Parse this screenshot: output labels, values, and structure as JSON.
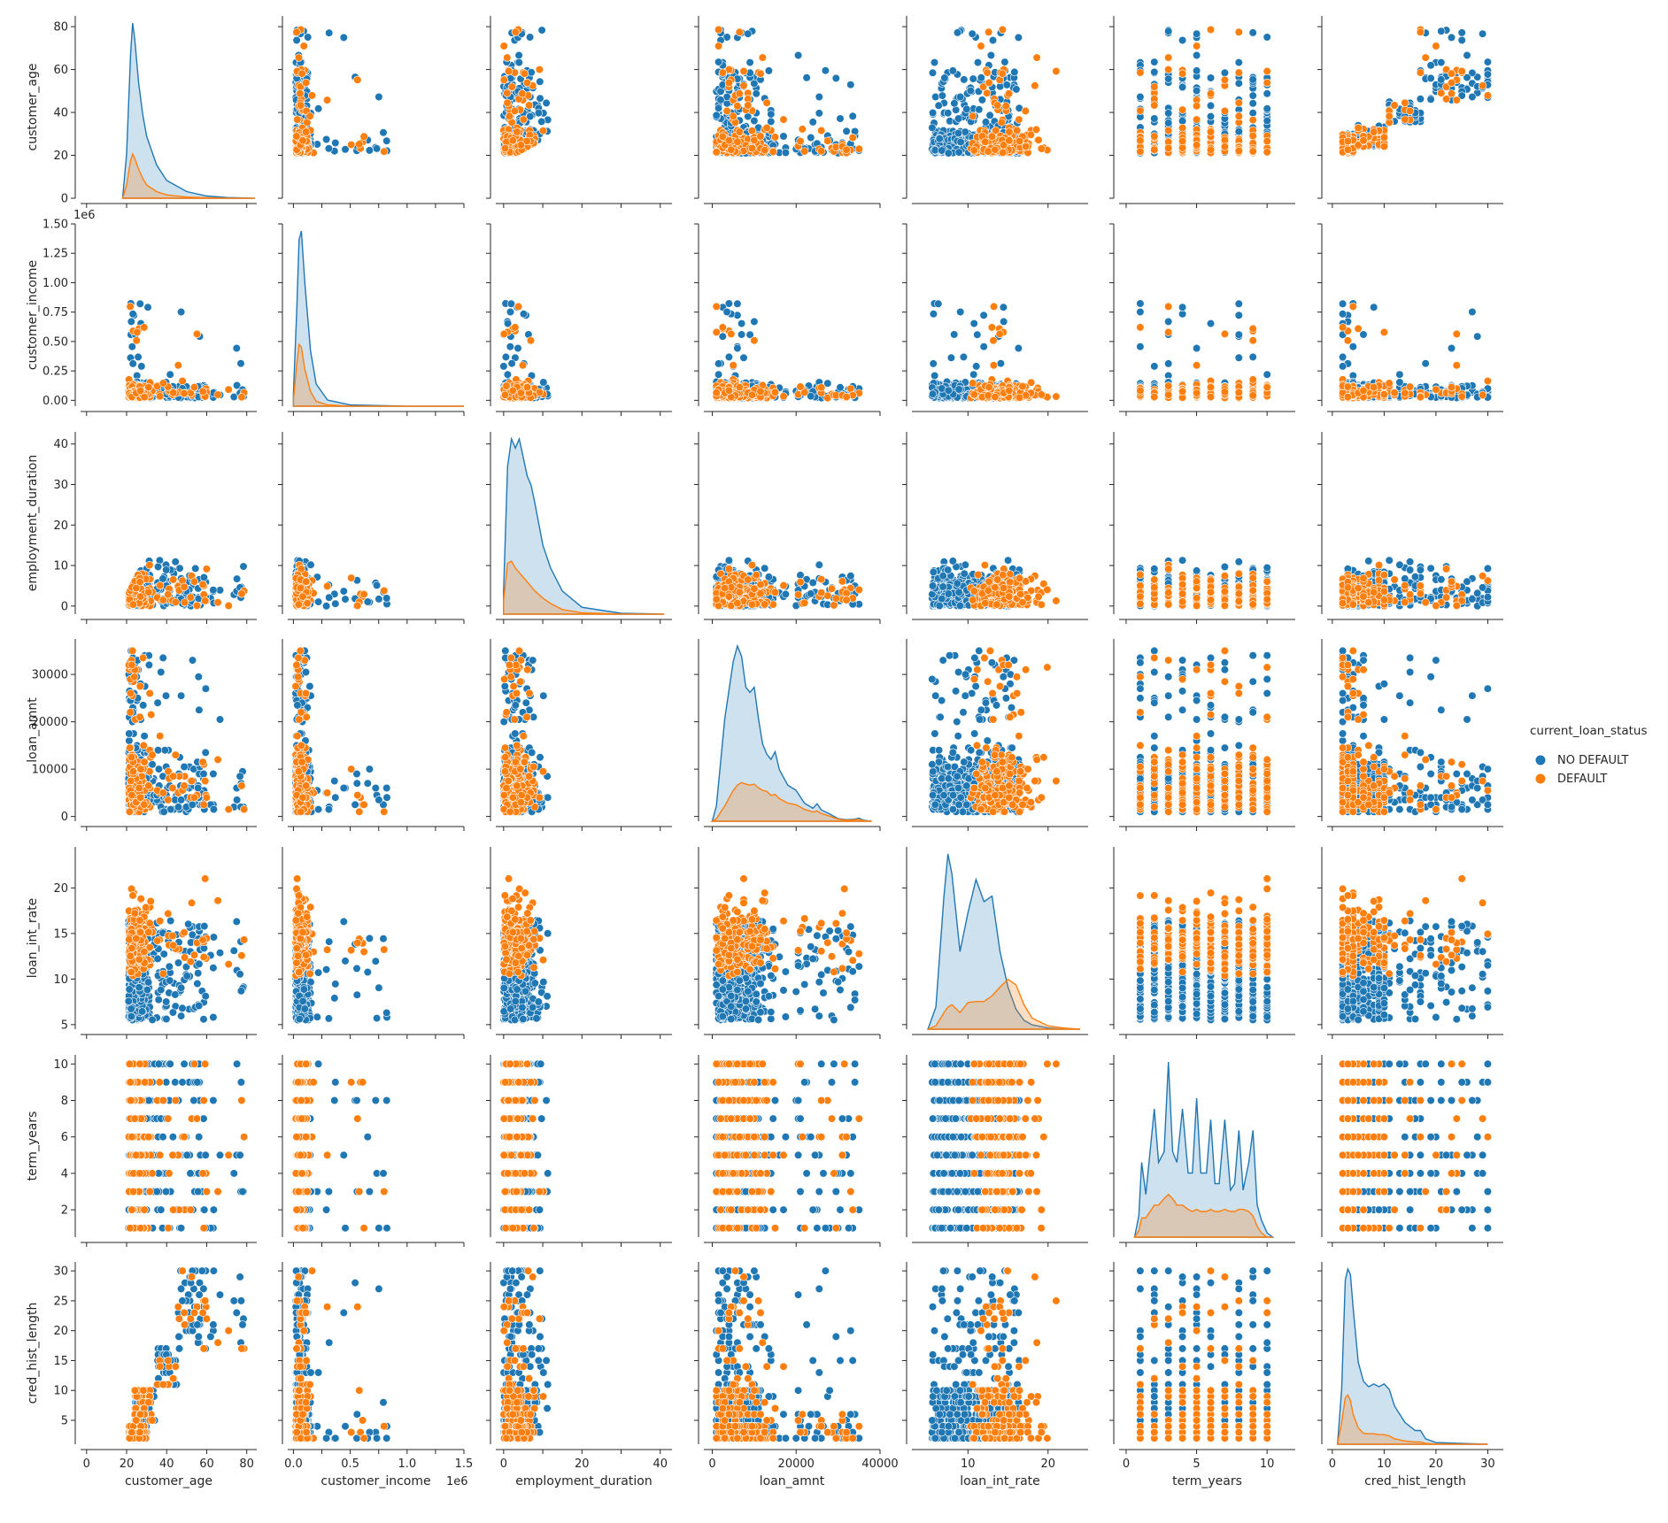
{
  "chart_data": {
    "type": "scatter",
    "subtype": "pairplot",
    "grid": false,
    "legend_placement": "right",
    "legend": {
      "title": "current_loan_status",
      "entries": [
        {
          "name": "NO DEFAULT",
          "color": "#1f77b4"
        },
        {
          "name": "DEFAULT",
          "color": "#ff7f0e"
        }
      ]
    },
    "variables": [
      {
        "name": "customer_age",
        "range": [
          0,
          85
        ],
        "ticks": [
          0,
          20,
          40,
          60,
          80
        ],
        "tick_labels": [
          "0",
          "20",
          "40",
          "60",
          "80"
        ],
        "offset_text": ""
      },
      {
        "name": "customer_income",
        "range": [
          -0.05,
          1.5
        ],
        "ticks": [
          0.0,
          0.25,
          0.5,
          0.75,
          1.0,
          1.25,
          1.5
        ],
        "tick_labels": [
          "0.00",
          "0.25",
          "0.50",
          "0.75",
          "1.00",
          "1.25",
          "1.50"
        ],
        "x_tick_labels": [
          "0.0",
          "",
          "0.5",
          "",
          "1.0",
          "",
          "1.5"
        ],
        "offset_text": "1e6"
      },
      {
        "name": "employment_duration",
        "range": [
          -2,
          43
        ],
        "ticks": [
          0,
          10,
          20,
          30,
          40
        ],
        "tick_labels": [
          "0",
          "10",
          "20",
          "30",
          "40"
        ],
        "x_tick_labels": [
          "0",
          "",
          "20",
          "",
          "40"
        ],
        "offset_text": ""
      },
      {
        "name": "loan_amnt",
        "range": [
          -1000,
          37500
        ],
        "ticks": [
          0,
          10000,
          20000,
          30000
        ],
        "tick_labels": [
          "0",
          "10000",
          "20000",
          "30000"
        ],
        "x_ticks": [
          0,
          20000,
          40000
        ],
        "x_tick_labels": [
          "0",
          "20000",
          "40000"
        ],
        "offset_text": ""
      },
      {
        "name": "loan_int_rate",
        "range": [
          4.5,
          24.5
        ],
        "ticks": [
          5,
          10,
          15,
          20
        ],
        "tick_labels": [
          "5",
          "10",
          "15",
          "20"
        ],
        "x_ticks": [
          10,
          20
        ],
        "x_tick_labels": [
          "10",
          "20"
        ],
        "offset_text": ""
      },
      {
        "name": "term_years",
        "range": [
          0.5,
          10.5
        ],
        "ticks": [
          2,
          4,
          6,
          8,
          10
        ],
        "tick_labels": [
          "2",
          "4",
          "6",
          "8",
          "10"
        ],
        "x_ticks": [
          0,
          5,
          10
        ],
        "x_tick_labels": [
          "0",
          "5",
          "10"
        ],
        "offset_text": ""
      },
      {
        "name": "cred_hist_length",
        "range": [
          1,
          31.5
        ],
        "ticks": [
          5,
          10,
          15,
          20,
          25,
          30
        ],
        "tick_labels": [
          "5",
          "10",
          "15",
          "20",
          "25",
          "30"
        ],
        "x_ticks": [
          0,
          10,
          20,
          30
        ],
        "x_tick_labels": [
          "0",
          "10",
          "20",
          "30"
        ],
        "offset_text": ""
      }
    ],
    "x_ranges": [
      [
        -3,
        85
      ],
      [
        -0.05,
        1.5
      ],
      [
        -2,
        43
      ],
      [
        -2000,
        40000
      ],
      [
        3,
        25
      ],
      [
        -0.5,
        12
      ],
      [
        -1,
        33
      ]
    ],
    "diagonal_kde": [
      {
        "variable": "customer_age",
        "x": [
          18,
          20,
          22,
          23,
          24,
          26,
          28,
          30,
          35,
          40,
          50,
          60,
          70,
          84
        ],
        "NO DEFAULT": [
          0,
          20,
          65,
          79,
          72,
          52,
          38,
          28,
          15,
          8,
          3,
          1,
          0.3,
          0
        ],
        "DEFAULT": [
          0,
          6,
          17,
          20,
          18,
          13,
          9,
          6,
          3,
          1.5,
          0.5,
          0.2,
          0,
          0
        ]
      },
      {
        "variable": "customer_income",
        "x": [
          0.0,
          0.03,
          0.05,
          0.07,
          0.1,
          0.15,
          0.2,
          0.3,
          0.5,
          1.0,
          1.5
        ],
        "NO DEFAULT": [
          0.1,
          0.8,
          1.35,
          1.42,
          1.0,
          0.45,
          0.18,
          0.05,
          0.01,
          0,
          0
        ],
        "DEFAULT": [
          0.05,
          0.35,
          0.5,
          0.48,
          0.3,
          0.12,
          0.04,
          0.01,
          0,
          0,
          0
        ]
      },
      {
        "variable": "employment_duration",
        "x": [
          0,
          1,
          2,
          3,
          4,
          5,
          6,
          7,
          8,
          10,
          12,
          15,
          20,
          30,
          41
        ],
        "NO DEFAULT": [
          5,
          32,
          38,
          36,
          38,
          34,
          30,
          28,
          24,
          15,
          10,
          5,
          1.5,
          0.2,
          0
        ],
        "DEFAULT": [
          3,
          11,
          11.5,
          10,
          9,
          8,
          7,
          6,
          5,
          3.5,
          2.3,
          1,
          0.3,
          0,
          0
        ]
      },
      {
        "variable": "loan_amnt",
        "x": [
          0,
          1000,
          3000,
          5000,
          6000,
          7000,
          8000,
          9000,
          10000,
          11000,
          12000,
          13000,
          14000,
          15000,
          16000,
          18000,
          20000,
          22000,
          24000,
          25000,
          26000,
          28000,
          30000,
          32000,
          34000,
          35000,
          36000,
          38000
        ],
        "NO DEFAULT": [
          0,
          3000,
          20000,
          31000,
          34000,
          32000,
          26000,
          25000,
          26000,
          20000,
          15000,
          13000,
          12000,
          13500,
          10000,
          7000,
          6000,
          3500,
          2500,
          3400,
          2200,
          1400,
          500,
          300,
          400,
          600,
          200,
          0
        ],
        "DEFAULT": [
          0,
          500,
          3000,
          6000,
          7000,
          7500,
          7200,
          7000,
          7200,
          6500,
          6000,
          5800,
          5000,
          5200,
          4400,
          3500,
          3200,
          2300,
          1800,
          2000,
          1500,
          1000,
          400,
          200,
          300,
          400,
          100,
          0
        ]
      },
      {
        "variable": "loan_int_rate",
        "x": [
          5,
          6,
          7,
          7.5,
          8,
          9,
          10,
          11,
          12,
          13,
          14,
          15,
          16,
          17,
          18,
          20,
          22,
          24
        ],
        "NO DEFAULT": [
          0,
          20,
          120,
          158,
          140,
          70,
          105,
          135,
          115,
          120,
          70,
          38,
          18,
          8,
          4,
          1,
          0,
          0
        ],
        "DEFAULT": [
          0,
          3,
          15,
          20,
          22,
          15,
          24,
          25,
          25,
          30,
          38,
          45,
          40,
          22,
          10,
          3,
          1,
          0
        ]
      },
      {
        "variable": "term_years",
        "x": [
          0.6,
          0.9,
          1.1,
          1.4,
          1.7,
          2,
          2.3,
          2.7,
          3,
          3.3,
          3.6,
          4,
          4.4,
          4.7,
          5,
          5.3,
          5.7,
          6,
          6.3,
          6.6,
          7,
          7.4,
          7.7,
          8,
          8.3,
          8.7,
          9,
          9.3,
          9.6,
          10,
          10.4
        ],
        "NO DEFAULT": [
          0,
          1,
          3.5,
          2,
          4,
          6,
          3.5,
          4,
          8.2,
          4,
          3.5,
          6,
          3,
          3,
          6.5,
          3,
          3,
          5.5,
          2.5,
          2.5,
          5.5,
          2.2,
          2.5,
          5,
          2.2,
          3.5,
          5,
          1.5,
          0.8,
          0.2,
          0
        ],
        "DEFAULT": [
          0,
          0.3,
          0.9,
          0.9,
          1.2,
          1.5,
          1.5,
          1.8,
          2,
          1.8,
          1.5,
          1.5,
          1.3,
          1.2,
          1.3,
          1.2,
          1.2,
          1.3,
          1.2,
          1.2,
          1.3,
          1.2,
          1.2,
          1.3,
          1.3,
          1.2,
          1,
          0.5,
          0.2,
          0,
          0
        ]
      },
      {
        "variable": "cred_hist_length",
        "x": [
          1,
          1.8,
          2.5,
          3,
          3.5,
          4,
          5,
          6,
          7,
          8,
          9,
          10,
          11,
          12,
          14,
          16,
          17,
          18,
          20,
          25,
          30
        ],
        "NO DEFAULT": [
          0,
          20,
          60,
          64,
          62,
          50,
          30,
          23,
          21,
          22,
          21,
          22,
          20,
          14,
          8,
          5,
          5,
          2,
          0.6,
          0.3,
          0
        ],
        "DEFAULT": [
          0,
          8,
          17,
          18,
          16,
          11,
          6,
          4,
          3.8,
          3.8,
          3.6,
          3.5,
          3,
          2,
          1.2,
          0.8,
          0.8,
          0.3,
          0.1,
          0,
          0
        ]
      }
    ],
    "scatter_note": "off-diagonal panels show pairwise scatter of NO DEFAULT (blue) and DEFAULT (orange) observations"
  }
}
